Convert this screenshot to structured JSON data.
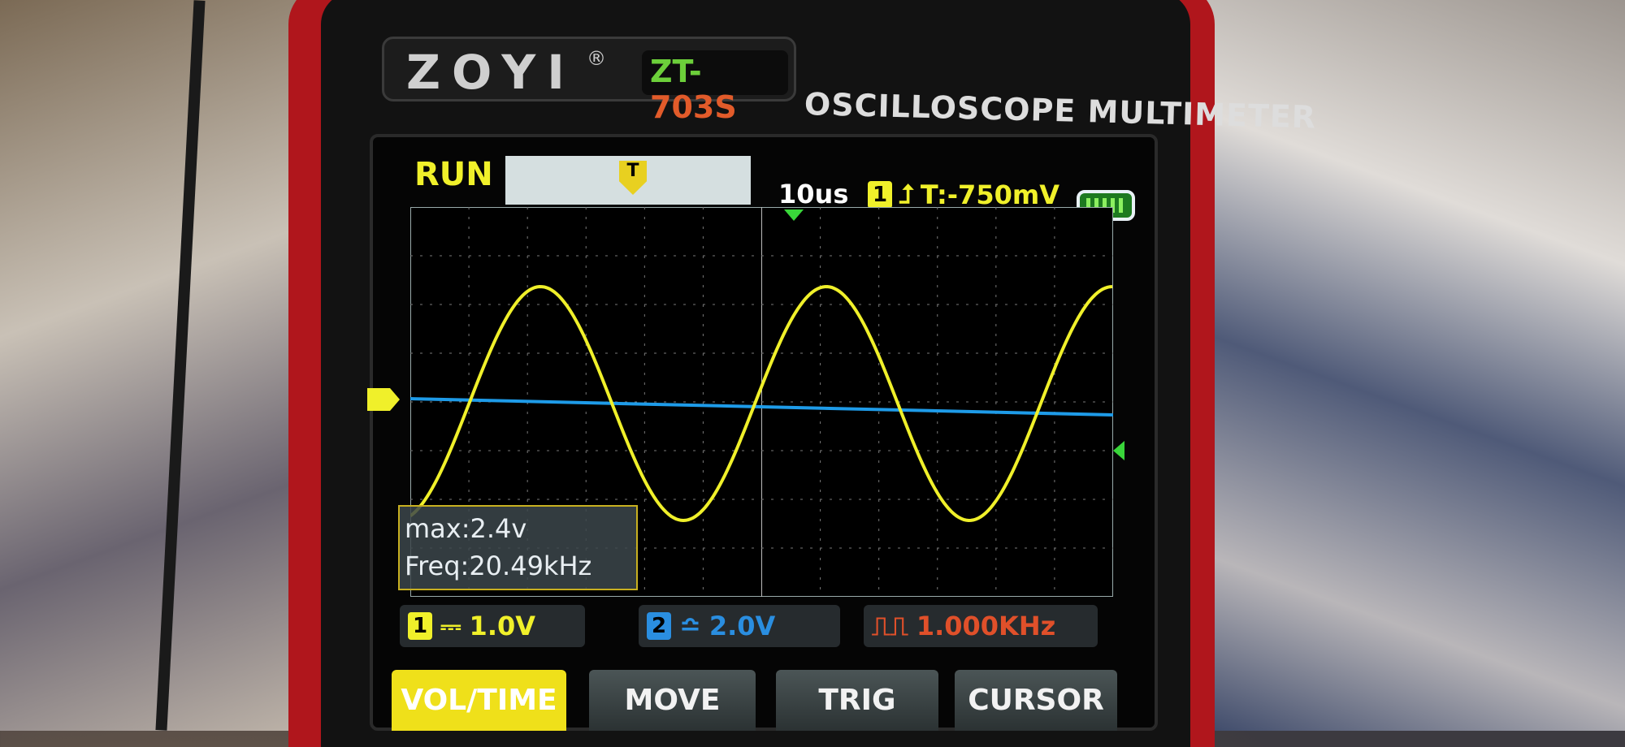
{
  "device": {
    "brand": "ZOYI",
    "registered": "®",
    "model_prefix": "ZT-",
    "model_suffix": "703S",
    "subtitle": "OSCILLOSCOPE MULTIMETER"
  },
  "status": {
    "run_state": "RUN",
    "trigger_marker": "T",
    "timebase": "10us",
    "trigger_channel": "1",
    "trigger_level": "T:-750mV",
    "battery_level": 1.0
  },
  "measurements": {
    "max": "max:2.4v",
    "freq": "Freq:20.49kHz"
  },
  "channels": [
    {
      "number": "1",
      "scale": "1.0V",
      "color": "#f0f02a"
    },
    {
      "number": "2",
      "scale": "2.0V",
      "color": "#2a8ee0"
    }
  ],
  "generator": {
    "frequency": "1.000KHz",
    "color": "#e0502a"
  },
  "buttons": [
    {
      "label": "VOL/TIME",
      "active": true
    },
    {
      "label": "MOVE",
      "active": false
    },
    {
      "label": "TRIG",
      "active": false
    },
    {
      "label": "CURSOR",
      "active": false
    }
  ],
  "waveform": {
    "type": "sine",
    "frequency_khz": 20.49,
    "max_v": 2.4,
    "volts_per_div": 1.0,
    "time_per_div_us": 10,
    "divisions_x": 12,
    "divisions_y": 8
  }
}
